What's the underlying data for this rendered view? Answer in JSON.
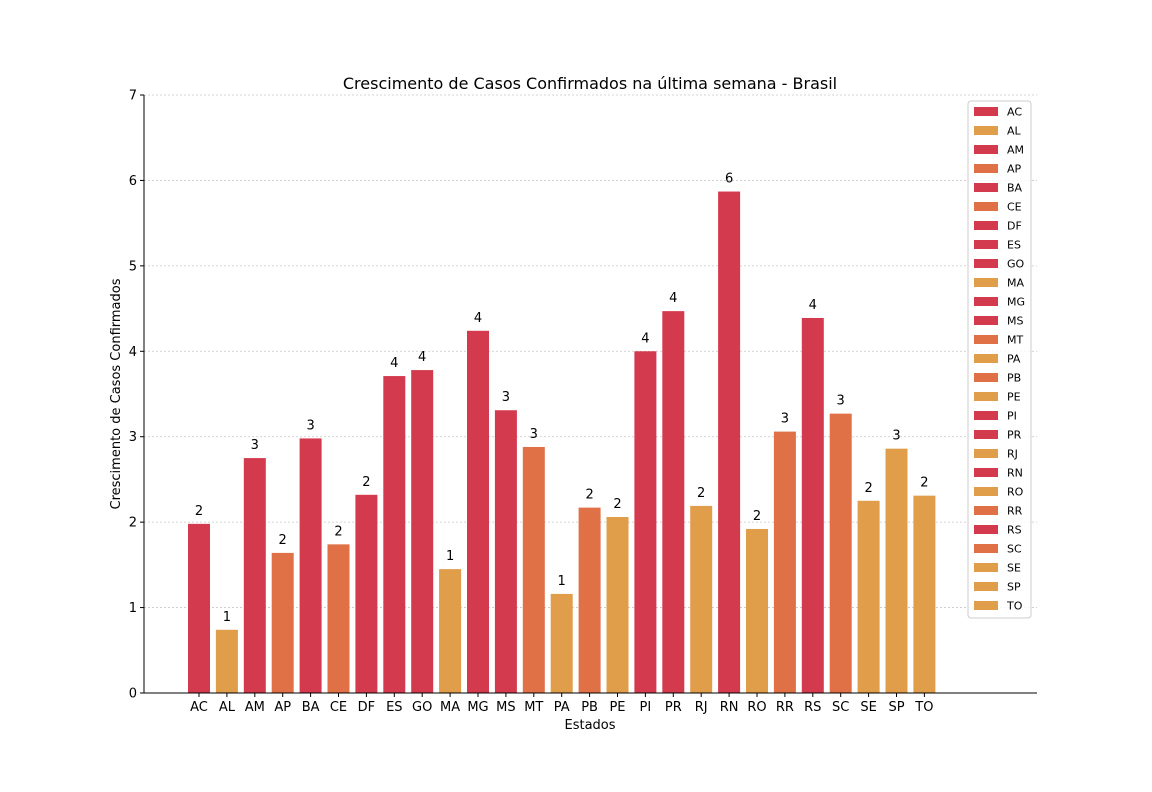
{
  "chart_data": {
    "type": "bar",
    "title": "Crescimento de Casos Confirmados na última semana - Brasil",
    "xlabel": "Estados",
    "ylabel": "Crescimento de Casos Confirmados",
    "ylim": [
      0,
      7
    ],
    "yticks": [
      "0",
      "1",
      "2",
      "3",
      "4",
      "5",
      "6",
      "7"
    ],
    "grid": "horizontal dashed",
    "legend_position": "top-right",
    "colors": {
      "red": "#d43a4e",
      "orange": "#e07045",
      "yellow": "#e09d4a"
    },
    "categories": [
      "AC",
      "AL",
      "AM",
      "AP",
      "BA",
      "CE",
      "DF",
      "ES",
      "GO",
      "MA",
      "MG",
      "MS",
      "MT",
      "PA",
      "PB",
      "PE",
      "PI",
      "PR",
      "RJ",
      "RN",
      "RO",
      "RR",
      "RS",
      "SC",
      "SE",
      "SP",
      "TO"
    ],
    "values": [
      1.98,
      0.74,
      2.75,
      1.64,
      2.98,
      1.74,
      2.32,
      3.71,
      3.78,
      1.45,
      4.24,
      3.31,
      2.88,
      1.16,
      2.17,
      2.06,
      4.0,
      4.47,
      2.19,
      5.87,
      1.92,
      3.06,
      4.39,
      3.27,
      2.25,
      2.86,
      2.31
    ],
    "data_labels": [
      "2",
      "1",
      "3",
      "2",
      "3",
      "2",
      "2",
      "4",
      "4",
      "1",
      "4",
      "3",
      "3",
      "1",
      "2",
      "2",
      "4",
      "4",
      "2",
      "6",
      "2",
      "3",
      "4",
      "3",
      "2",
      "3",
      "2"
    ],
    "bar_colors": [
      "red",
      "yellow",
      "red",
      "orange",
      "red",
      "orange",
      "red",
      "red",
      "red",
      "yellow",
      "red",
      "red",
      "orange",
      "yellow",
      "orange",
      "yellow",
      "red",
      "red",
      "yellow",
      "red",
      "yellow",
      "orange",
      "red",
      "orange",
      "yellow",
      "yellow",
      "yellow"
    ]
  }
}
